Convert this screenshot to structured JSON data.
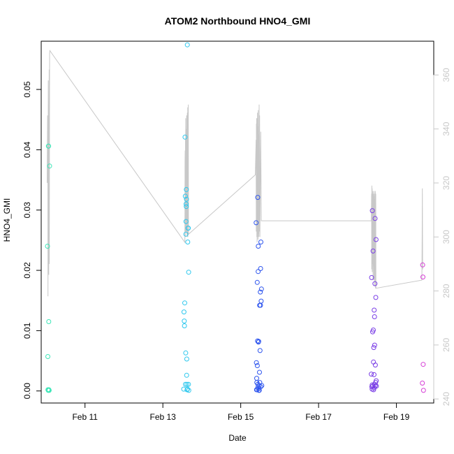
{
  "chart_data": {
    "type": "scatter",
    "title": "ATOM2 Northbound HNO4_GMI",
    "xlabel": "Date",
    "ylabel": "HNO4_GMI",
    "xlim": [
      "2017-02-09T21:00",
      "2017-02-19T23:00"
    ],
    "ylim": [
      -0.002,
      0.058
    ],
    "y2lim": [
      238.5,
      372.5
    ],
    "x_ticks": [
      {
        "t": "2017-02-11T00:00",
        "label": "Feb 11"
      },
      {
        "t": "2017-02-13T00:00",
        "label": "Feb 13"
      },
      {
        "t": "2017-02-15T00:00",
        "label": "Feb 15"
      },
      {
        "t": "2017-02-17T00:00",
        "label": "Feb 17"
      },
      {
        "t": "2017-02-19T00:00",
        "label": "Feb 19"
      }
    ],
    "y_ticks": [
      {
        "v": 0.0,
        "label": "0.00"
      },
      {
        "v": 0.01,
        "label": "0.01"
      },
      {
        "v": 0.02,
        "label": "0.02"
      },
      {
        "v": 0.03,
        "label": "0.03"
      },
      {
        "v": 0.04,
        "label": "0.04"
      },
      {
        "v": 0.05,
        "label": "0.05"
      }
    ],
    "y2_ticks": [
      {
        "v": 240,
        "label": "240"
      },
      {
        "v": 260,
        "label": "260"
      },
      {
        "v": 280,
        "label": "280"
      },
      {
        "v": 300,
        "label": "300"
      },
      {
        "v": 320,
        "label": "320"
      },
      {
        "v": 340,
        "label": "340"
      },
      {
        "v": 360,
        "label": "360"
      }
    ],
    "grid": false,
    "colors": {
      "line": "#c8c8c8",
      "right_axis": "#c8c8c8",
      "frame": "#000000"
    },
    "series": [
      {
        "type": "scatter",
        "color": "#3ee6b8",
        "points": [
          [
            "2017-02-10T00:52",
            0.024
          ],
          [
            "2017-02-10T01:05",
            0.0057
          ],
          [
            "2017-02-10T01:10",
            0.0002
          ],
          [
            "2017-02-10T01:20",
            0.0001
          ],
          [
            "2017-02-10T01:25",
            0.0406
          ],
          [
            "2017-02-10T01:35",
            0.0406
          ],
          [
            "2017-02-10T01:40",
            0.0115
          ],
          [
            "2017-02-10T01:45",
            0.0002
          ],
          [
            "2017-02-10T01:55",
            0.0001
          ],
          [
            "2017-02-10T02:10",
            0.0373
          ]
        ]
      },
      {
        "type": "scatter",
        "color": "#2ec8ee",
        "points": [
          [
            "2017-02-13T12:50",
            0.0003
          ],
          [
            "2017-02-13T13:00",
            0.0131
          ],
          [
            "2017-02-13T13:10",
            0.0116
          ],
          [
            "2017-02-13T13:20",
            0.0108
          ],
          [
            "2017-02-13T13:30",
            0.0146
          ],
          [
            "2017-02-13T13:40",
            0.0421
          ],
          [
            "2017-02-13T13:50",
            0.0323
          ],
          [
            "2017-02-13T13:55",
            0.0011
          ],
          [
            "2017-02-13T14:05",
            0.0063
          ],
          [
            "2017-02-13T14:10",
            0.026
          ],
          [
            "2017-02-13T14:15",
            0.0281
          ],
          [
            "2017-02-13T14:20",
            0.031
          ],
          [
            "2017-02-13T14:25",
            0.0306
          ],
          [
            "2017-02-13T14:30",
            0.0334
          ],
          [
            "2017-02-13T14:35",
            0.0318
          ],
          [
            "2017-02-13T14:40",
            0.0026
          ],
          [
            "2017-02-13T14:45",
            0.0053
          ],
          [
            "2017-02-13T14:50",
            0.0011
          ],
          [
            "2017-02-13T14:55",
            0.0002
          ],
          [
            "2017-02-13T15:05",
            0.0574
          ],
          [
            "2017-02-13T15:10",
            0.0003
          ],
          [
            "2017-02-13T15:20",
            0.0247
          ],
          [
            "2017-02-13T15:30",
            0.027
          ],
          [
            "2017-02-13T15:40",
            0.027
          ],
          [
            "2017-02-13T15:45",
            0.0011
          ],
          [
            "2017-02-13T15:55",
            0.0197
          ],
          [
            "2017-02-13T16:00",
            0.0001
          ]
        ]
      },
      {
        "type": "scatter",
        "color": "#2e55ee",
        "points": [
          [
            "2017-02-15T09:30",
            0.0279
          ],
          [
            "2017-02-15T09:40",
            0.0047
          ],
          [
            "2017-02-15T09:50",
            0.0021
          ],
          [
            "2017-02-15T09:55",
            0.0014
          ],
          [
            "2017-02-15T10:05",
            0.0002
          ],
          [
            "2017-02-15T10:10",
            0.018
          ],
          [
            "2017-02-15T10:15",
            0.0042
          ],
          [
            "2017-02-15T10:25",
            0.0083
          ],
          [
            "2017-02-15T10:30",
            0.0321
          ],
          [
            "2017-02-15T10:35",
            0.0011
          ],
          [
            "2017-02-15T10:45",
            0.0198
          ],
          [
            "2017-02-15T10:50",
            0.024
          ],
          [
            "2017-02-15T10:55",
            0.0081
          ],
          [
            "2017-02-15T11:05",
            0.0082
          ],
          [
            "2017-02-15T11:10",
            0.0001
          ],
          [
            "2017-02-15T11:20",
            0.0009
          ],
          [
            "2017-02-15T11:25",
            0.0001
          ],
          [
            "2017-02-15T11:35",
            0.0031
          ],
          [
            "2017-02-15T11:40",
            0.0142
          ],
          [
            "2017-02-15T11:45",
            0.0014
          ],
          [
            "2017-02-15T11:55",
            0.0067
          ],
          [
            "2017-02-15T12:05",
            0.0164
          ],
          [
            "2017-02-15T12:10",
            0.0142
          ],
          [
            "2017-02-15T12:15",
            0.0203
          ],
          [
            "2017-02-15T12:20",
            0.0007
          ],
          [
            "2017-02-15T12:25",
            0.0247
          ],
          [
            "2017-02-15T12:35",
            0.0149
          ],
          [
            "2017-02-15T12:45",
            0.0169
          ],
          [
            "2017-02-15T13:00",
            0.0009
          ],
          [
            "2017-02-15T11:00",
            0.0004
          ],
          [
            "2017-02-15T10:40",
            0.0006
          ],
          [
            "2017-02-15T09:45",
            0.0002
          ]
        ]
      },
      {
        "type": "scatter",
        "color": "#7a3ee6",
        "points": [
          [
            "2017-02-18T08:30",
            0.0028
          ],
          [
            "2017-02-18T08:40",
            0.0188
          ],
          [
            "2017-02-18T08:50",
            0.0007
          ],
          [
            "2017-02-18T09:00",
            0.0003
          ],
          [
            "2017-02-18T09:10",
            0.0299
          ],
          [
            "2017-02-18T09:20",
            0.0098
          ],
          [
            "2017-02-18T09:25",
            0.0008
          ],
          [
            "2017-02-18T09:35",
            0.0232
          ],
          [
            "2017-02-18T09:45",
            0.0101
          ],
          [
            "2017-02-18T09:50",
            0.0048
          ],
          [
            "2017-02-18T10:00",
            0.0072
          ],
          [
            "2017-02-18T10:10",
            0.0027
          ],
          [
            "2017-02-18T10:15",
            0.0134
          ],
          [
            "2017-02-18T10:25",
            0.0011
          ],
          [
            "2017-02-18T10:30",
            0.0123
          ],
          [
            "2017-02-18T10:35",
            0.0076
          ],
          [
            "2017-02-18T10:45",
            0.0178
          ],
          [
            "2017-02-18T10:50",
            0.0286
          ],
          [
            "2017-02-18T11:00",
            0.0043
          ],
          [
            "2017-02-18T11:10",
            0.0014
          ],
          [
            "2017-02-18T11:15",
            0.0155
          ],
          [
            "2017-02-18T11:25",
            0.0251
          ],
          [
            "2017-02-18T11:30",
            0.0017
          ],
          [
            "2017-02-18T11:40",
            0.0008
          ],
          [
            "2017-02-18T09:05",
            0.001
          ],
          [
            "2017-02-18T09:55",
            0.0002
          ],
          [
            "2017-02-18T10:20",
            0.0005
          ],
          [
            "2017-02-18T11:05",
            0.0009
          ]
        ]
      },
      {
        "type": "scatter",
        "color": "#d63ed6",
        "points": [
          [
            "2017-02-19T16:00",
            0.0013
          ],
          [
            "2017-02-19T16:10",
            0.0209
          ],
          [
            "2017-02-19T16:20",
            0.0189
          ],
          [
            "2017-02-19T16:30",
            0.0044
          ],
          [
            "2017-02-19T16:40",
            0.0001
          ]
        ]
      },
      {
        "type": "line",
        "axis": "right",
        "name": "",
        "color": "#c8c8c8",
        "segments": [
          [
            [
              "2017-02-10T00:40",
              320
            ],
            [
              "2017-02-10T00:55",
              345
            ],
            [
              "2017-02-10T01:05",
              330
            ],
            [
              "2017-02-10T01:10",
              278
            ],
            [
              "2017-02-10T01:15",
              312
            ],
            [
              "2017-02-10T01:20",
              358
            ],
            [
              "2017-02-10T01:25",
              295
            ],
            [
              "2017-02-10T01:30",
              342
            ],
            [
              "2017-02-10T01:35",
              300
            ],
            [
              "2017-02-10T01:40",
              286
            ],
            [
              "2017-02-10T01:45",
              338
            ],
            [
              "2017-02-10T01:50",
              350
            ],
            [
              "2017-02-10T01:55",
              362
            ],
            [
              "2017-02-10T02:00",
              290
            ],
            [
              "2017-02-10T02:10",
              368
            ],
            [
              "2017-02-10T02:20",
              369
            ],
            [
              "2017-02-13T13:35",
              298
            ],
            [
              "2017-02-13T13:40",
              328
            ],
            [
              "2017-02-13T13:45",
              332
            ],
            [
              "2017-02-13T13:50",
              300
            ],
            [
              "2017-02-13T13:55",
              336
            ],
            [
              "2017-02-13T14:00",
              302
            ],
            [
              "2017-02-13T14:05",
              344
            ],
            [
              "2017-02-13T14:10",
              304
            ],
            [
              "2017-02-13T14:15",
              339
            ],
            [
              "2017-02-13T14:20",
              302
            ],
            [
              "2017-02-13T14:30",
              340
            ],
            [
              "2017-02-13T14:35",
              303
            ],
            [
              "2017-02-13T14:40",
              345
            ],
            [
              "2017-02-13T14:45",
              301
            ],
            [
              "2017-02-13T14:55",
              342
            ],
            [
              "2017-02-13T15:00",
              300
            ],
            [
              "2017-02-13T15:05",
              346
            ],
            [
              "2017-02-13T15:10",
              301
            ],
            [
              "2017-02-13T15:20",
              348
            ],
            [
              "2017-02-13T15:25",
              300
            ],
            [
              "2017-02-13T15:35",
              343
            ],
            [
              "2017-02-13T15:40",
              349
            ],
            [
              "2017-02-13T15:50",
              301
            ],
            [
              "2017-02-15T09:00",
              323
            ],
            [
              "2017-02-15T09:30",
              336
            ],
            [
              "2017-02-15T09:35",
              302
            ],
            [
              "2017-02-15T09:40",
              342
            ],
            [
              "2017-02-15T09:45",
              303
            ],
            [
              "2017-02-15T09:50",
              344
            ],
            [
              "2017-02-15T09:55",
              300
            ],
            [
              "2017-02-15T10:00",
              340
            ],
            [
              "2017-02-15T10:05",
              298
            ],
            [
              "2017-02-15T10:10",
              344
            ],
            [
              "2017-02-15T10:15",
              302
            ],
            [
              "2017-02-15T10:20",
              346
            ],
            [
              "2017-02-15T10:25",
              300
            ],
            [
              "2017-02-15T10:35",
              341
            ],
            [
              "2017-02-15T10:40",
              299
            ],
            [
              "2017-02-15T10:50",
              347
            ],
            [
              "2017-02-15T10:55",
              301
            ],
            [
              "2017-02-15T11:05",
              338
            ],
            [
              "2017-02-15T11:10",
              300
            ],
            [
              "2017-02-15T11:20",
              349
            ],
            [
              "2017-02-15T11:30",
              302
            ],
            [
              "2017-02-15T11:40",
              345
            ],
            [
              "2017-02-15T11:50",
              300
            ],
            [
              "2017-02-15T12:20",
              339
            ],
            [
              "2017-02-15T12:40",
              306
            ],
            [
              "2017-02-18T08:30",
              306
            ],
            [
              "2017-02-18T08:40",
              316
            ],
            [
              "2017-02-18T08:45",
              288
            ],
            [
              "2017-02-18T08:50",
              319
            ],
            [
              "2017-02-18T08:55",
              294
            ],
            [
              "2017-02-18T09:00",
              318
            ],
            [
              "2017-02-18T09:05",
              287
            ],
            [
              "2017-02-18T09:15",
              316
            ],
            [
              "2017-02-18T09:20",
              290
            ],
            [
              "2017-02-18T09:30",
              317
            ],
            [
              "2017-02-18T09:35",
              284
            ],
            [
              "2017-02-18T09:45",
              316
            ],
            [
              "2017-02-18T09:50",
              289
            ],
            [
              "2017-02-18T10:00",
              315
            ],
            [
              "2017-02-18T10:05",
              284
            ],
            [
              "2017-02-18T10:15",
              317
            ],
            [
              "2017-02-18T10:20",
              288
            ],
            [
              "2017-02-18T10:30",
              314
            ],
            [
              "2017-02-18T10:35",
              282
            ],
            [
              "2017-02-18T10:45",
              316
            ],
            [
              "2017-02-18T10:50",
              284
            ],
            [
              "2017-02-18T11:00",
              317
            ],
            [
              "2017-02-18T11:05",
              281
            ],
            [
              "2017-02-18T11:15",
              316
            ],
            [
              "2017-02-18T11:20",
              281
            ],
            [
              "2017-02-19T15:40",
              284
            ],
            [
              "2017-02-19T15:50",
              300
            ],
            [
              "2017-02-19T16:00",
              318
            ],
            [
              "2017-02-19T16:10",
              288
            ]
          ]
        ]
      }
    ]
  }
}
